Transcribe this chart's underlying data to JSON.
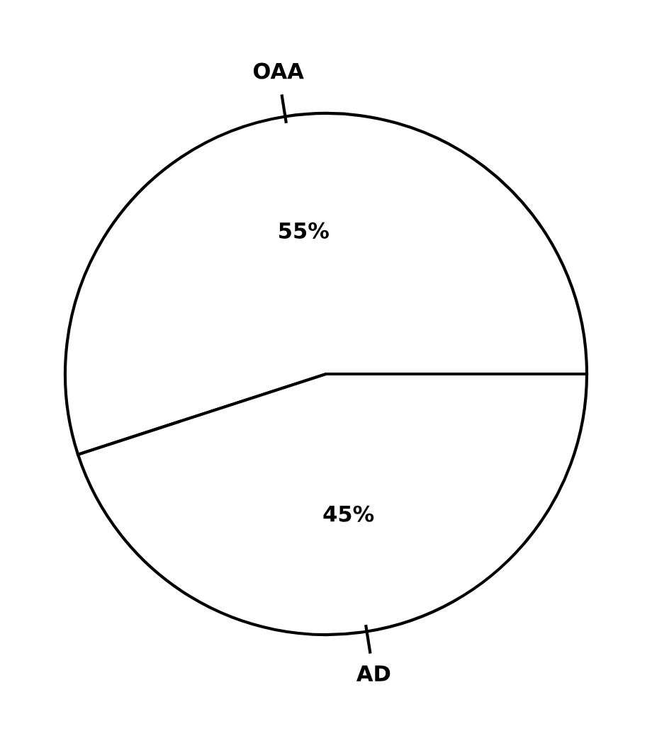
{
  "chart_data": {
    "type": "pie",
    "categories": [
      "OAA",
      "AD"
    ],
    "values": [
      55,
      45
    ],
    "colors": [
      "#ffffff",
      "#ffffff"
    ],
    "value_labels": [
      "55%",
      "45%"
    ]
  }
}
